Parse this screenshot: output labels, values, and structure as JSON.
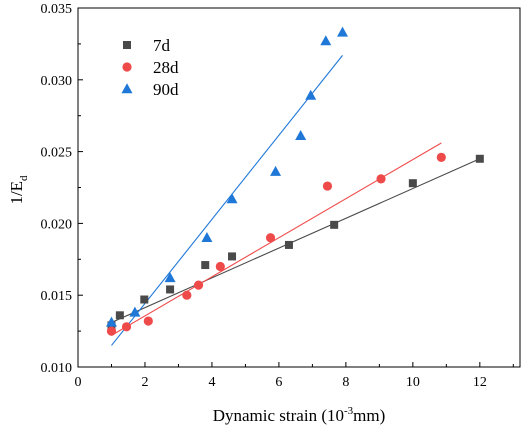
{
  "chart_data": {
    "type": "scatter",
    "title": "",
    "xlabel": {
      "main": "Dynamic strain (10",
      "superscript": "-3",
      "suffix": "mm)"
    },
    "ylabel": {
      "main": "1/E",
      "subscript": "d"
    },
    "xlim": [
      0,
      13.2
    ],
    "ylim": [
      0.01,
      0.035
    ],
    "xticks": [
      0,
      2,
      4,
      6,
      8,
      10,
      12
    ],
    "xtick_labels": [
      "0",
      "2",
      "4",
      "6",
      "8",
      "10",
      "12"
    ],
    "yticks": [
      0.01,
      0.015,
      0.02,
      0.025,
      0.03,
      0.035
    ],
    "ytick_labels": [
      "0.010",
      "0.015",
      "0.020",
      "0.025",
      "0.030",
      "0.035"
    ],
    "legend_position": "top-left",
    "grid": false,
    "series": [
      {
        "name": "7d",
        "marker": "square",
        "color": "#4a4a4a",
        "x": [
          1.0,
          1.25,
          1.98,
          2.75,
          3.8,
          4.6,
          6.3,
          7.65,
          10.0,
          12.0
        ],
        "y": [
          0.0129,
          0.0136,
          0.0147,
          0.0154,
          0.0171,
          0.0177,
          0.0185,
          0.0199,
          0.0228,
          0.0245
        ],
        "fit": {
          "x": [
            1.0,
            12.0
          ],
          "y": [
            0.0131,
            0.0245
          ]
        }
      },
      {
        "name": "28d",
        "marker": "circle",
        "color": "#ef4a4a",
        "x": [
          1.0,
          1.45,
          2.1,
          3.25,
          3.6,
          4.25,
          5.75,
          7.45,
          9.05,
          10.85
        ],
        "y": [
          0.0125,
          0.0128,
          0.0132,
          0.015,
          0.0157,
          0.017,
          0.019,
          0.0226,
          0.0231,
          0.0246
        ],
        "fit": {
          "x": [
            1.0,
            10.85
          ],
          "y": [
            0.0122,
            0.0256
          ]
        }
      },
      {
        "name": "90d",
        "marker": "triangle",
        "color": "#1f78d8",
        "x": [
          1.0,
          1.7,
          2.75,
          3.85,
          4.6,
          5.9,
          6.65,
          6.95,
          7.4,
          7.9
        ],
        "y": [
          0.0131,
          0.0138,
          0.0162,
          0.019,
          0.0217,
          0.0236,
          0.0261,
          0.0289,
          0.0327,
          0.0333
        ],
        "fit": {
          "x": [
            1.0,
            7.9
          ],
          "y": [
            0.0115,
            0.0317
          ]
        }
      }
    ]
  }
}
